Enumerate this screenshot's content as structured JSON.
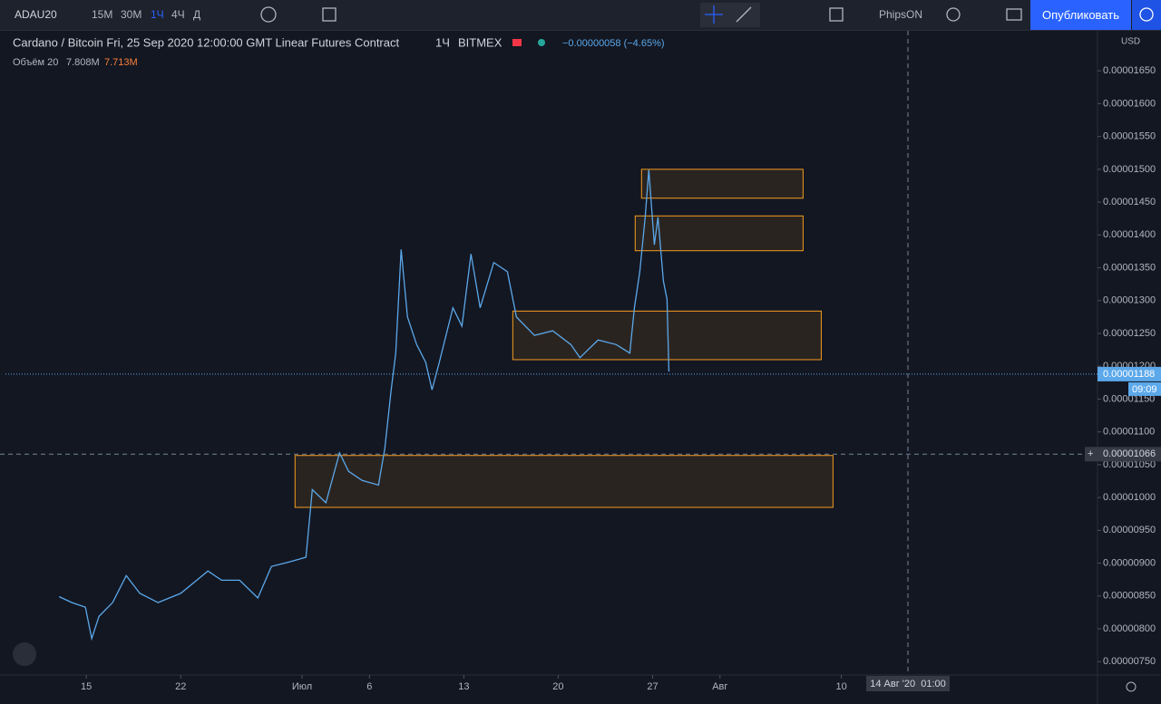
{
  "toolbar": {
    "symbol": "ADAU20",
    "intervals": [
      "15М",
      "30М",
      "1Ч",
      "4Ч",
      "Д"
    ],
    "account": "PhipsON",
    "publish": "Опубликовать"
  },
  "legend": {
    "title": "Cardano / Bitcoin Fri, 25 Sep 2020 12:00:00 GMT Linear Futures Contract",
    "interval": "1Ч",
    "exchange": "BITMEX",
    "change": "−0.00000058 (−4.65%)",
    "volume_label": "Объём 20",
    "volume": "7.808M",
    "volume_ma": "7.713M"
  },
  "chart_data": {
    "type": "line",
    "x": [
      12.98,
      13.92,
      14.93,
      15.4,
      15.94,
      16.95,
      17.96,
      18.97,
      20.32,
      22.0,
      24.02,
      25.03,
      26.37,
      27.72,
      28.73,
      30.08,
      31.29,
      31.76,
      32.77,
      33.78,
      34.45,
      35.46,
      36.67,
      37.14,
      37.61,
      37.95,
      38.35,
      38.82,
      39.5,
      40.17,
      40.64,
      41.18,
      42.19,
      42.86,
      43.53,
      44.21,
      45.22,
      46.23,
      46.9,
      48.24,
      49.59,
      50.94,
      51.61,
      52.96,
      54.3,
      55.31,
      55.65,
      56.05,
      56.45,
      56.72,
      57.13,
      57.4,
      57.8,
      58.07,
      58.21
    ],
    "series": [
      {
        "color": "#5ba8ea",
        "values": [
          8.49e-06,
          8.4e-06,
          8.33e-06,
          7.85e-06,
          8.19e-06,
          8.4e-06,
          8.81e-06,
          8.54e-06,
          8.4e-06,
          8.54e-06,
          8.88e-06,
          8.74e-06,
          8.74e-06,
          8.47e-06,
          8.95e-06,
          9.02e-06,
          9.09e-06,
          1.012e-05,
          9.92e-06,
          1.068e-05,
          1.04e-05,
          1.026e-05,
          1.019e-05,
          1.075e-05,
          1.164e-05,
          1.22e-05,
          1.378e-05,
          1.275e-05,
          1.233e-05,
          1.206e-05,
          1.164e-05,
          1.206e-05,
          1.289e-05,
          1.261e-05,
          1.371e-05,
          1.289e-05,
          1.358e-05,
          1.344e-05,
          1.275e-05,
          1.247e-05,
          1.254e-05,
          1.233e-05,
          1.213e-05,
          1.24e-05,
          1.233e-05,
          1.22e-05,
          1.289e-05,
          1.344e-05,
          1.427e-05,
          1.499e-05,
          1.385e-05,
          1.427e-05,
          1.33e-05,
          1.302e-05,
          1.192e-05
        ]
      }
    ],
    "xlim": [
      9,
      90
    ],
    "xticks": [
      15,
      22,
      {
        "value": 31,
        "label": "Июл"
      },
      {
        "value": 36,
        "label": "6"
      },
      {
        "value": 43,
        "label": "13"
      },
      {
        "value": 50,
        "label": "20"
      },
      {
        "value": 57,
        "label": "27"
      },
      {
        "value": 62,
        "label": "Авг"
      },
      {
        "value": 71,
        "label": "10"
      }
    ],
    "ylim": [
      7.02e-06,
      1.711e-05
    ],
    "yticks": [
      {
        "value": 7.5e-06,
        "label": "0.00000750"
      },
      {
        "value": 8e-06,
        "label": "0.00000800"
      },
      {
        "value": 8.5e-06,
        "label": "0.00000850"
      },
      {
        "value": 9e-06,
        "label": "0.00000900"
      },
      {
        "value": 9.5e-06,
        "label": "0.00000950"
      },
      {
        "value": 1e-05,
        "label": "0.00001000"
      },
      {
        "value": 1.05e-05,
        "label": "0.00001050"
      },
      {
        "value": 1.1e-05,
        "label": "0.00001100"
      },
      {
        "value": 1.15e-05,
        "label": "0.00001150"
      },
      {
        "value": 1.2e-05,
        "label": "0.00001200"
      },
      {
        "value": 1.25e-05,
        "label": "0.00001250"
      },
      {
        "value": 1.3e-05,
        "label": "0.00001300"
      },
      {
        "value": 1.35e-05,
        "label": "0.00001350"
      },
      {
        "value": 1.4e-05,
        "label": "0.00001400"
      },
      {
        "value": 1.45e-05,
        "label": "0.00001450"
      },
      {
        "value": 1.5e-05,
        "label": "0.00001500"
      },
      {
        "value": 1.55e-05,
        "label": "0.00001550"
      },
      {
        "value": 1.6e-05,
        "label": "0.00001600"
      },
      {
        "value": 1.65e-05,
        "label": "0.00001650"
      }
    ],
    "currency": "USD",
    "last_price": {
      "value": 1.188e-05,
      "label": "0.00001188"
    },
    "countdown": "09:09",
    "crosshair": {
      "price": {
        "value": 1.066e-05,
        "label": "0.00001066"
      },
      "time": "14 Авг '20  01:00"
    },
    "zone_color": "#f59d1e",
    "zones": [
      {
        "x": [
          56.18,
          68.16
        ],
        "y": [
          1.456e-05,
          1.5e-05
        ]
      },
      {
        "x": [
          55.71,
          68.16
        ],
        "y": [
          1.376e-05,
          1.429e-05
        ]
      },
      {
        "x": [
          46.63,
          69.51
        ],
        "y": [
          1.21e-05,
          1.284e-05
        ]
      },
      {
        "x": [
          30.48,
          70.38
        ],
        "y": [
          9.85e-06,
          1.064e-05
        ]
      }
    ]
  }
}
